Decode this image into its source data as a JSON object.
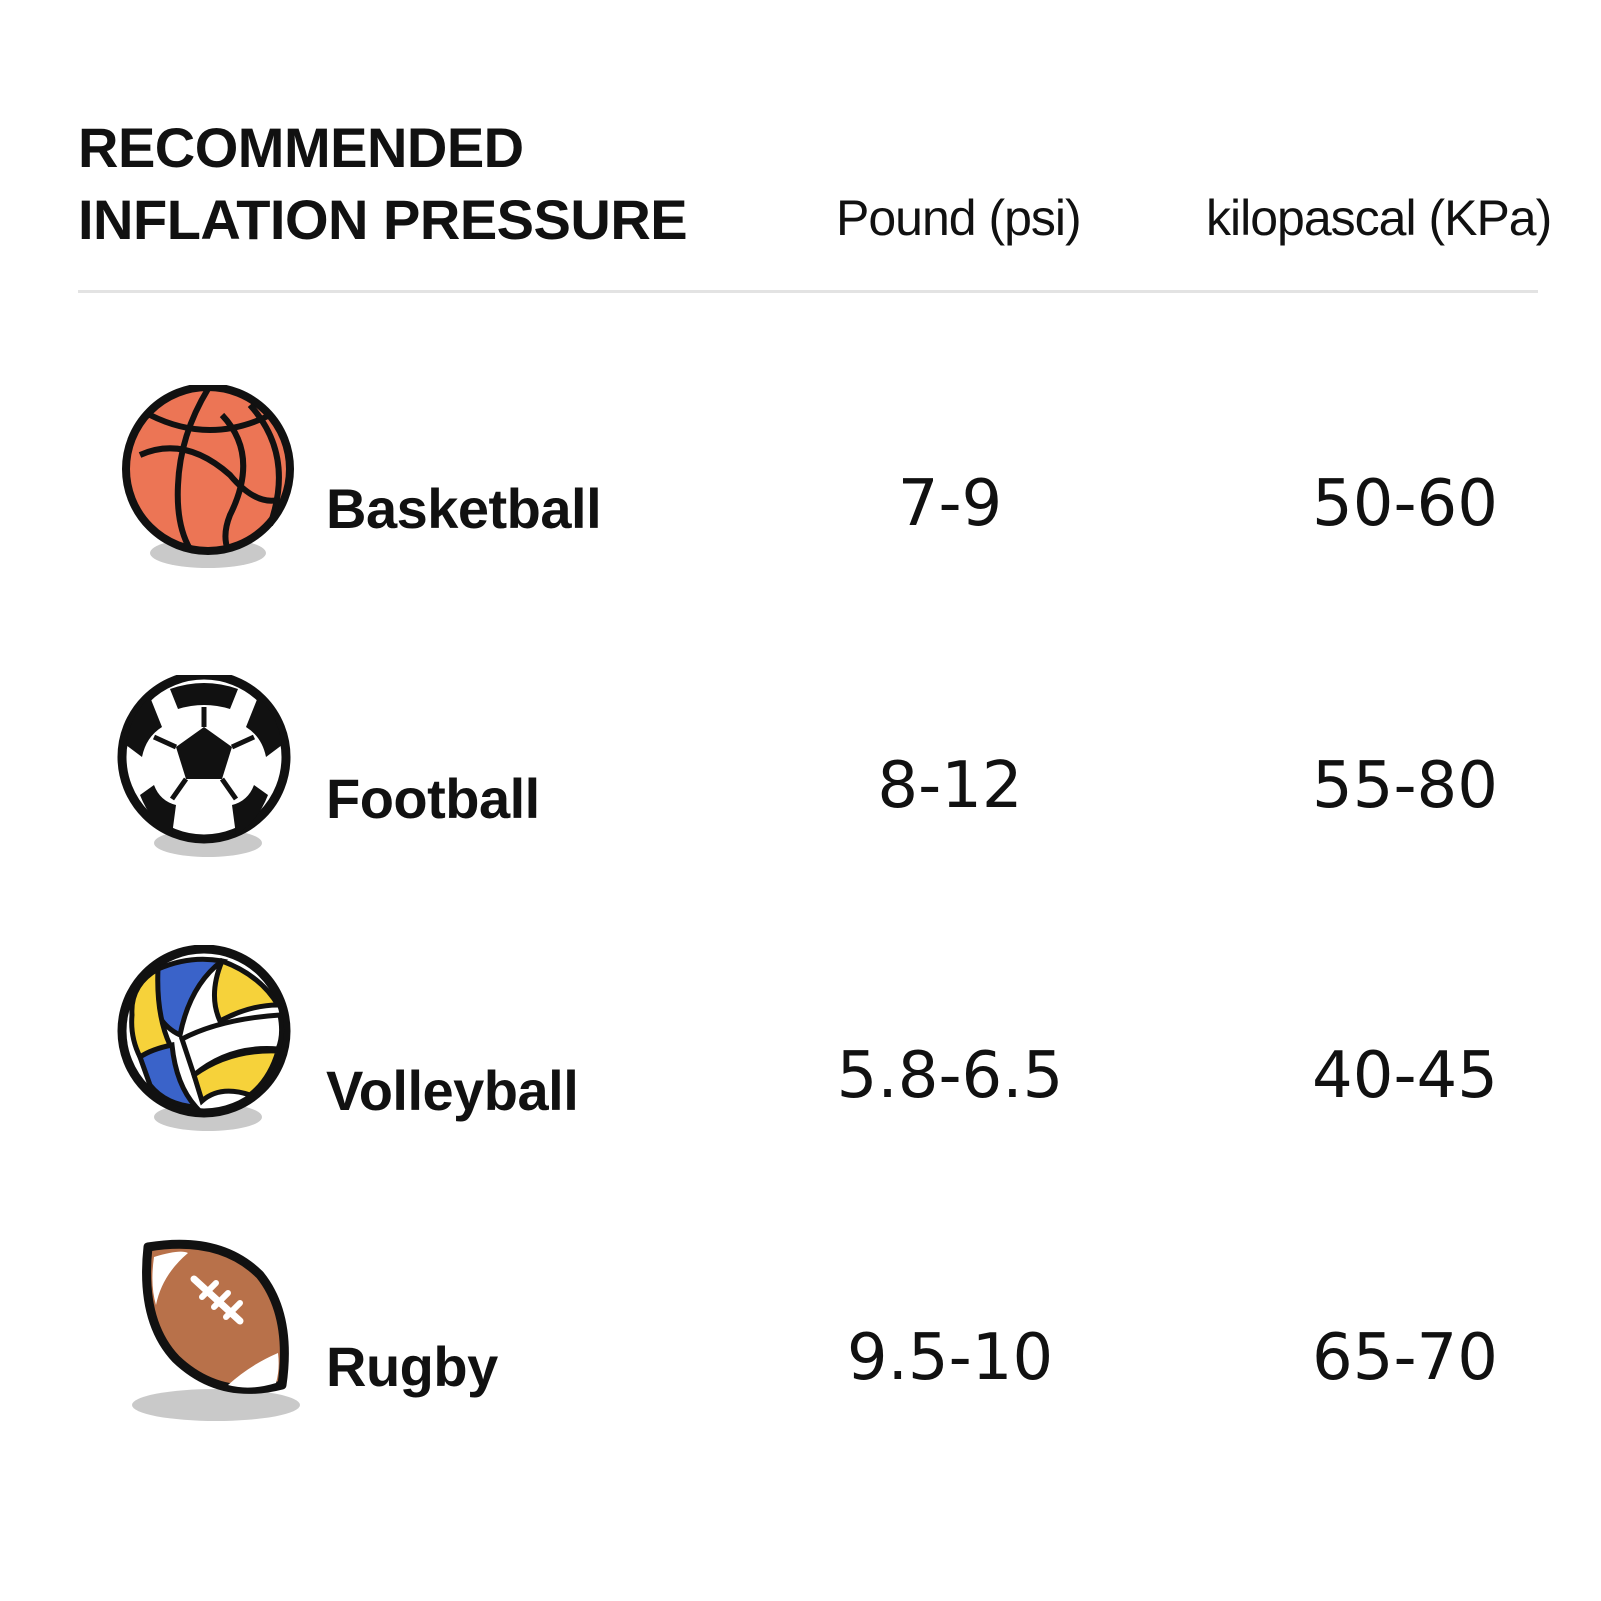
{
  "header": {
    "title_line1": "RECOMMENDED",
    "title_line2": "INFLATION PRESSURE",
    "col_psi": "Pound (psi)",
    "col_kpa": "kilopascal (KPa)"
  },
  "rows": [
    {
      "sport": "Basketball",
      "icon": "basketball-icon",
      "psi": "7-9",
      "kpa": "50-60"
    },
    {
      "sport": "Football",
      "icon": "soccer-ball-icon",
      "psi": "8-12",
      "kpa": "55-80"
    },
    {
      "sport": "Volleyball",
      "icon": "volleyball-icon",
      "psi": "5.8-6.5",
      "kpa": "40-45"
    },
    {
      "sport": "Rugby",
      "icon": "rugby-ball-icon",
      "psi": "9.5-10",
      "kpa": "65-70"
    }
  ],
  "colors": {
    "basketball": "#ec7555",
    "rugby": "#b8714a",
    "volleyball_blue": "#3a63c9",
    "volleyball_yellow": "#f6d23a",
    "shadow": "#c9c9c9"
  }
}
